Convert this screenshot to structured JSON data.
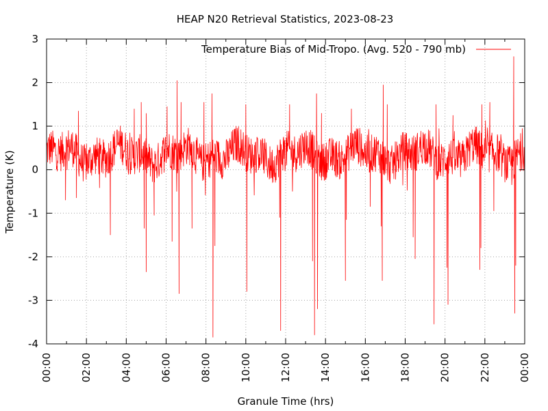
{
  "chart_data": {
    "type": "line",
    "title": "HEAP N20 Retrieval Statistics, 2023-08-23",
    "xlabel": "Granule Time (hrs)",
    "ylabel": "Temperature (K)",
    "xlim": [
      0,
      24
    ],
    "ylim": [
      -4,
      3
    ],
    "x_ticks": [
      "00:00",
      "02:00",
      "04:00",
      "06:00",
      "08:00",
      "10:00",
      "12:00",
      "14:00",
      "16:00",
      "18:00",
      "20:00",
      "22:00",
      "00:00"
    ],
    "y_ticks": [
      "-4",
      "-3",
      "-2",
      "-1",
      "0",
      "1",
      "2",
      "3"
    ],
    "grid": true,
    "legend_position": "top-right",
    "series": [
      {
        "name": "Temperature Bias of Mid-Tropo. (Avg. 520 - 790 mb)",
        "color": "#ff0000",
        "baseline_mean": 0.35,
        "noise_amplitude": 0.45,
        "extremes": [
          {
            "x": 0.95,
            "y": -0.7
          },
          {
            "x": 1.5,
            "y": -0.65
          },
          {
            "x": 1.6,
            "y": 1.35
          },
          {
            "x": 3.2,
            "y": -1.5
          },
          {
            "x": 4.4,
            "y": 1.4
          },
          {
            "x": 4.75,
            "y": 1.55
          },
          {
            "x": 4.9,
            "y": -1.35
          },
          {
            "x": 5.0,
            "y": -2.35
          },
          {
            "x": 5.4,
            "y": -1.05
          },
          {
            "x": 6.05,
            "y": 1.45
          },
          {
            "x": 6.3,
            "y": -1.65
          },
          {
            "x": 6.55,
            "y": 2.05
          },
          {
            "x": 6.65,
            "y": -2.85
          },
          {
            "x": 6.75,
            "y": 1.55
          },
          {
            "x": 7.3,
            "y": -1.35
          },
          {
            "x": 7.9,
            "y": 1.55
          },
          {
            "x": 8.3,
            "y": 1.75
          },
          {
            "x": 8.35,
            "y": -3.85
          },
          {
            "x": 8.45,
            "y": -1.75
          },
          {
            "x": 10.0,
            "y": 1.5
          },
          {
            "x": 10.05,
            "y": -2.8
          },
          {
            "x": 11.7,
            "y": -1.1
          },
          {
            "x": 11.75,
            "y": -3.7
          },
          {
            "x": 12.2,
            "y": 1.5
          },
          {
            "x": 13.35,
            "y": -2.1
          },
          {
            "x": 13.45,
            "y": -3.8
          },
          {
            "x": 13.55,
            "y": 1.75
          },
          {
            "x": 13.6,
            "y": -3.2
          },
          {
            "x": 13.8,
            "y": 1.3
          },
          {
            "x": 15.0,
            "y": -2.55
          },
          {
            "x": 15.05,
            "y": -1.15
          },
          {
            "x": 15.3,
            "y": 1.4
          },
          {
            "x": 16.25,
            "y": -0.85
          },
          {
            "x": 16.8,
            "y": -1.3
          },
          {
            "x": 16.85,
            "y": -2.55
          },
          {
            "x": 16.9,
            "y": 1.95
          },
          {
            "x": 17.1,
            "y": 1.5
          },
          {
            "x": 18.4,
            "y": -1.55
          },
          {
            "x": 18.5,
            "y": -2.05
          },
          {
            "x": 19.45,
            "y": -3.55
          },
          {
            "x": 19.55,
            "y": 1.5
          },
          {
            "x": 20.1,
            "y": -2.25
          },
          {
            "x": 20.15,
            "y": -3.1
          },
          {
            "x": 20.4,
            "y": 1.25
          },
          {
            "x": 21.75,
            "y": -2.3
          },
          {
            "x": 21.8,
            "y": -1.8
          },
          {
            "x": 21.85,
            "y": 1.5
          },
          {
            "x": 22.25,
            "y": 1.55
          },
          {
            "x": 22.45,
            "y": -0.95
          },
          {
            "x": 23.35,
            "y": -0.35
          },
          {
            "x": 23.45,
            "y": 2.6
          },
          {
            "x": 23.5,
            "y": -3.3
          },
          {
            "x": 23.55,
            "y": -2.2
          }
        ]
      }
    ]
  }
}
